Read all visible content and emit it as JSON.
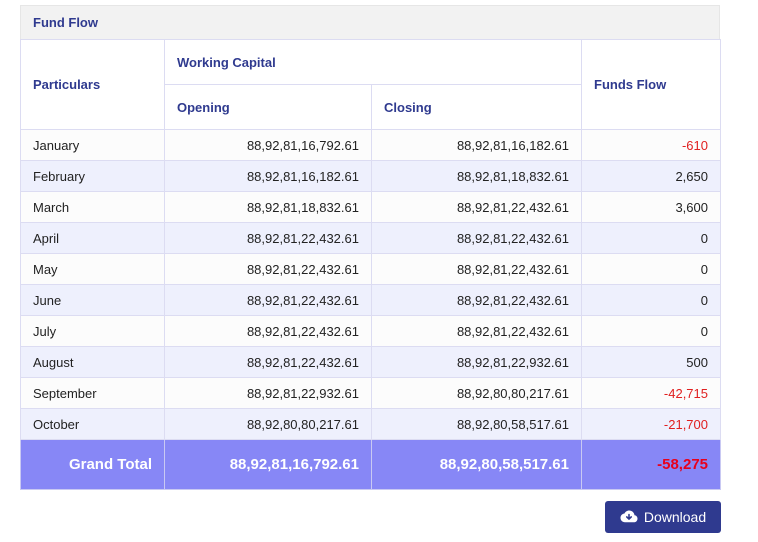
{
  "panel": {
    "title": "Fund Flow"
  },
  "headers": {
    "particulars": "Particulars",
    "working_capital": "Working Capital",
    "opening": "Opening",
    "closing": "Closing",
    "funds_flow": "Funds Flow"
  },
  "rows": [
    {
      "month": "January",
      "opening": "88,92,81,16,792.61",
      "closing": "88,92,81,16,182.61",
      "flow": "-610"
    },
    {
      "month": "February",
      "opening": "88,92,81,16,182.61",
      "closing": "88,92,81,18,832.61",
      "flow": "2,650"
    },
    {
      "month": "March",
      "opening": "88,92,81,18,832.61",
      "closing": "88,92,81,22,432.61",
      "flow": "3,600"
    },
    {
      "month": "April",
      "opening": "88,92,81,22,432.61",
      "closing": "88,92,81,22,432.61",
      "flow": "0"
    },
    {
      "month": "May",
      "opening": "88,92,81,22,432.61",
      "closing": "88,92,81,22,432.61",
      "flow": "0"
    },
    {
      "month": "June",
      "opening": "88,92,81,22,432.61",
      "closing": "88,92,81,22,432.61",
      "flow": "0"
    },
    {
      "month": "July",
      "opening": "88,92,81,22,432.61",
      "closing": "88,92,81,22,432.61",
      "flow": "0"
    },
    {
      "month": "August",
      "opening": "88,92,81,22,432.61",
      "closing": "88,92,81,22,932.61",
      "flow": "500"
    },
    {
      "month": "September",
      "opening": "88,92,81,22,932.61",
      "closing": "88,92,80,80,217.61",
      "flow": "-42,715"
    },
    {
      "month": "October",
      "opening": "88,92,80,80,217.61",
      "closing": "88,92,80,58,517.61",
      "flow": "-21,700"
    }
  ],
  "total": {
    "label": "Grand Total",
    "opening": "88,92,81,16,792.61",
    "closing": "88,92,80,58,517.61",
    "flow": "-58,275"
  },
  "download": {
    "label": "Download",
    "icon": "cloud-download-icon"
  },
  "colors": {
    "accent": "#2f3a8f",
    "total_row": "#8787f6",
    "negative": "#e02020",
    "stripe": "#eef0fd"
  }
}
